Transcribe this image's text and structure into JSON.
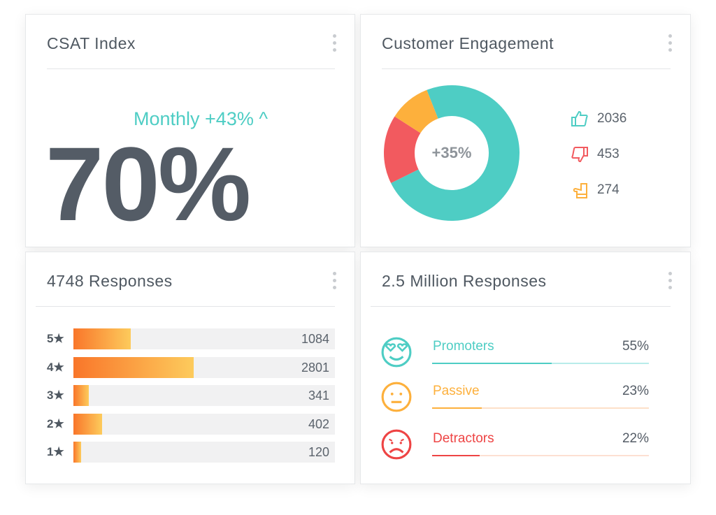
{
  "csat": {
    "title": "CSAT Index",
    "monthly": "Monthly +43% ^",
    "value": "70%"
  },
  "engagement": {
    "title": "Customer Engagement",
    "center": "+35%",
    "chart_data": {
      "type": "pie",
      "values": [
        2036,
        453,
        274
      ],
      "colors": [
        "#4ecdc4",
        "#f25a5f",
        "#fdb03c"
      ]
    },
    "legend": [
      {
        "icon": "thumbs-up-icon",
        "value": "2036",
        "color": "#4ecdc4"
      },
      {
        "icon": "thumbs-down-icon",
        "value": "453",
        "color": "#f25a5f"
      },
      {
        "icon": "thumbs-sideways-icon",
        "value": "274",
        "color": "#fdb03c"
      }
    ]
  },
  "responses": {
    "title": "4748 Responses",
    "rows": [
      {
        "stars": "5★",
        "value": "1084",
        "fill": 0.22
      },
      {
        "stars": "4★",
        "value": "2801",
        "fill": 0.46
      },
      {
        "stars": "3★",
        "value": "341",
        "fill": 0.06
      },
      {
        "stars": "2★",
        "value": "402",
        "fill": 0.11
      },
      {
        "stars": "1★",
        "value": "120",
        "fill": 0.03
      }
    ]
  },
  "nps": {
    "title": "2.5 Million Responses",
    "rows": [
      {
        "label": "Promoters",
        "pct": "55%",
        "fill": 0.55,
        "color": "#4ecdc4",
        "track": "#b8ecea",
        "icon": "heart-eyes-face-icon"
      },
      {
        "label": "Passive",
        "pct": "23%",
        "fill": 0.23,
        "color": "#fdb03c",
        "track": "#fde0c8",
        "icon": "neutral-face-icon"
      },
      {
        "label": "Detractors",
        "pct": "22%",
        "fill": 0.22,
        "color": "#ee4444",
        "track": "#fde0d2",
        "icon": "sad-face-icon"
      }
    ]
  }
}
